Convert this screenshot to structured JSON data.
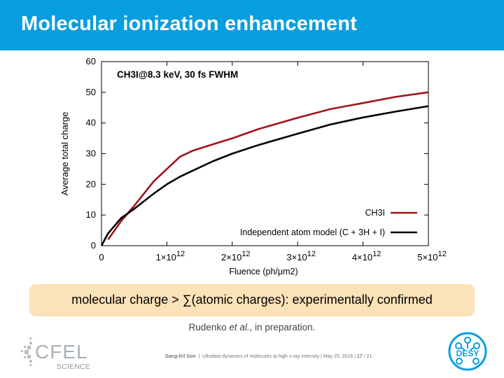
{
  "slide": {
    "title": "Molecular ionization enhancement",
    "conclusion": "molecular charge > ∑(atomic charges): experimentally confirmed",
    "reference_author": "Rudenko ",
    "reference_etal": "et al.",
    "reference_rest": ", in preparation.",
    "footer": {
      "author": "Sang-Kil Son",
      "talk": "Ultrafast dynamics of molecules at high x-ray intensity",
      "date": "May 25, 2016",
      "page_current": "17",
      "page_total": "21",
      "sep": "|"
    },
    "logos": {
      "cfel": "CFEL",
      "cfel_sub": "SCIENCE",
      "desy": "DESY"
    }
  },
  "chart_data": {
    "type": "line",
    "annotation": "CH3I@8.3 keV, 30 fs FWHM",
    "xlabel": "Fluence (ph/μm2)",
    "ylabel": "Average total charge",
    "xlim": [
      0,
      5000000000000.0
    ],
    "ylim": [
      0,
      60
    ],
    "x_ticks": [
      0,
      1000000000000.0,
      2000000000000.0,
      3000000000000.0,
      4000000000000.0,
      5000000000000.0
    ],
    "x_tick_labels": [
      "0",
      "1×1012",
      "2×1012",
      "3×1012",
      "4×1012",
      "5×1012"
    ],
    "y_ticks": [
      0,
      10,
      20,
      30,
      40,
      50,
      60
    ],
    "y_tick_labels": [
      "0",
      "10",
      "20",
      "30",
      "40",
      "50",
      "60"
    ],
    "grid": false,
    "legend_position": "bottom-right",
    "series": [
      {
        "name": "CH3I",
        "color": "#a0141a",
        "x": [
          100000000000.0,
          200000000000.0,
          300000000000.0,
          500000000000.0,
          800000000000.0,
          1000000000000.0,
          1200000000000.0,
          1400000000000.0,
          1700000000000.0,
          2000000000000.0,
          2400000000000.0,
          3000000000000.0,
          3500000000000.0,
          4000000000000.0,
          4500000000000.0,
          5000000000000.0
        ],
        "y": [
          2,
          5,
          8,
          13,
          21,
          25,
          29,
          31,
          33,
          35,
          38,
          41.7,
          44.5,
          46.5,
          48.5,
          50
        ]
      },
      {
        "name": "Independent atom model (C + 3H + I)",
        "color": "#000000",
        "x": [
          0,
          100000000000.0,
          200000000000.0,
          300000000000.0,
          500000000000.0,
          800000000000.0,
          1000000000000.0,
          1200000000000.0,
          1400000000000.0,
          1700000000000.0,
          2000000000000.0,
          2400000000000.0,
          3000000000000.0,
          3500000000000.0,
          4000000000000.0,
          4500000000000.0,
          5000000000000.0
        ],
        "y": [
          0,
          4,
          6.5,
          9,
          12,
          17,
          20,
          22.5,
          24.5,
          27.5,
          30,
          32.8,
          36.5,
          39.5,
          41.8,
          43.7,
          45.5
        ]
      }
    ]
  }
}
